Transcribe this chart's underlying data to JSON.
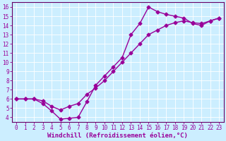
{
  "xlabel": "Windchill (Refroidissement éolien,°C)",
  "bg_color": "#cceeff",
  "line_color": "#990099",
  "xlim": [
    -0.5,
    23.5
  ],
  "ylim": [
    3.5,
    16.5
  ],
  "xticks": [
    0,
    1,
    2,
    3,
    4,
    5,
    6,
    7,
    8,
    9,
    10,
    11,
    12,
    13,
    14,
    15,
    16,
    17,
    18,
    19,
    20,
    21,
    22,
    23
  ],
  "yticks": [
    4,
    5,
    6,
    7,
    8,
    9,
    10,
    11,
    12,
    13,
    14,
    15,
    16
  ],
  "curve1_x": [
    0,
    1,
    2,
    3,
    4,
    5,
    6,
    7,
    8,
    9,
    10,
    11,
    12,
    13,
    14,
    15,
    16,
    17,
    18,
    19,
    20,
    21,
    22,
    23
  ],
  "curve1_y": [
    6.0,
    6.0,
    6.0,
    5.5,
    4.7,
    3.8,
    3.9,
    4.0,
    5.7,
    7.5,
    8.5,
    9.5,
    10.5,
    13.0,
    14.2,
    16.0,
    15.5,
    15.2,
    15.0,
    14.8,
    14.2,
    14.0,
    14.5,
    14.8
  ],
  "curve2_x": [
    0,
    1,
    2,
    3,
    4,
    5,
    6,
    7,
    8,
    9,
    10,
    11,
    12,
    13,
    14,
    15,
    16,
    17,
    18,
    19,
    20,
    21,
    22,
    23
  ],
  "curve2_y": [
    6.0,
    6.0,
    6.0,
    5.8,
    5.2,
    4.8,
    5.2,
    5.5,
    6.5,
    7.2,
    8.0,
    9.0,
    10.0,
    11.0,
    12.0,
    13.0,
    13.5,
    14.0,
    14.3,
    14.5,
    14.3,
    14.2,
    14.5,
    14.8
  ],
  "marker": "D",
  "markersize": 2.5,
  "linewidth": 1.0,
  "tick_fontsize": 5.5,
  "xlabel_fontsize": 6.5,
  "grid_color": "#aadddd",
  "spine_color": "#660066"
}
